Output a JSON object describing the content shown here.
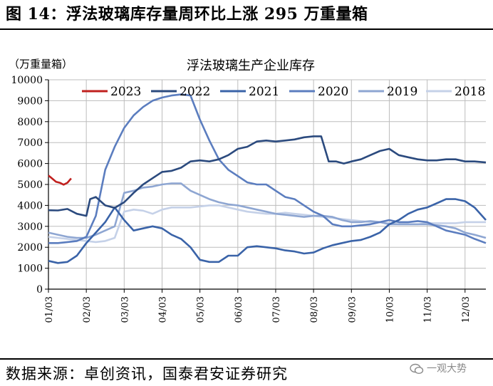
{
  "figure": {
    "title": "图 14：浮法玻璃库存量周环比上涨 295 万重量箱",
    "source": "数据来源：卓创资讯，国泰君安证券研究",
    "watermark": "一观大势"
  },
  "chart_data": {
    "type": "line",
    "title": "浮法玻璃生产企业库存",
    "ylabel": "（万重量箱）",
    "xlabel": "",
    "ylim": [
      0,
      10000
    ],
    "yticks": [
      0,
      1000,
      2000,
      3000,
      4000,
      5000,
      6000,
      7000,
      8000,
      9000,
      10000
    ],
    "xlim": [
      0,
      11.55
    ],
    "xticks": [
      0,
      1,
      2,
      3,
      4,
      5,
      6,
      7,
      8,
      9,
      10,
      11
    ],
    "xtick_labels": [
      "01/03",
      "02/03",
      "03/03",
      "04/03",
      "05/03",
      "06/03",
      "07/03",
      "08/03",
      "09/03",
      "10/03",
      "11/03",
      "12/03"
    ],
    "grid": true,
    "legend_position": "top",
    "series": [
      {
        "name": "2023",
        "color": "#c0201e",
        "x": [
          0,
          0.1,
          0.2,
          0.3,
          0.4,
          0.5,
          0.6
        ],
        "y": [
          5430,
          5280,
          5130,
          5080,
          4990,
          5080,
          5290
        ]
      },
      {
        "name": "2022",
        "color": "#2b4a7e",
        "x": [
          0,
          0.25,
          0.5,
          0.75,
          1.0,
          1.1,
          1.25,
          1.5,
          1.75,
          2.0,
          2.25,
          2.5,
          2.75,
          3.0,
          3.25,
          3.5,
          3.75,
          4.0,
          4.25,
          4.5,
          4.75,
          5.0,
          5.25,
          5.5,
          5.75,
          6.0,
          6.25,
          6.5,
          6.75,
          7.0,
          7.2,
          7.4,
          7.6,
          7.8,
          8.0,
          8.25,
          8.5,
          8.75,
          9.0,
          9.25,
          9.5,
          9.75,
          10.0,
          10.25,
          10.5,
          10.75,
          11.0,
          11.25,
          11.55
        ],
        "y": [
          3770,
          3760,
          3830,
          3600,
          3500,
          4300,
          4400,
          4000,
          3880,
          4150,
          4600,
          5000,
          5300,
          5600,
          5650,
          5800,
          6100,
          6150,
          6100,
          6200,
          6400,
          6700,
          6800,
          7050,
          7100,
          7050,
          7100,
          7150,
          7250,
          7300,
          7300,
          6100,
          6100,
          6000,
          6100,
          6200,
          6400,
          6600,
          6700,
          6400,
          6300,
          6200,
          6150,
          6150,
          6200,
          6200,
          6100,
          6100,
          6050
        ]
      },
      {
        "name": "2021",
        "color": "#3a63a8",
        "x": [
          0,
          0.25,
          0.5,
          0.75,
          1.0,
          1.25,
          1.5,
          1.75,
          2.0,
          2.25,
          2.5,
          2.75,
          3.0,
          3.25,
          3.5,
          3.75,
          4.0,
          4.25,
          4.5,
          4.75,
          5.0,
          5.25,
          5.5,
          5.75,
          6.0,
          6.25,
          6.5,
          6.75,
          7.0,
          7.25,
          7.5,
          7.75,
          8.0,
          8.25,
          8.5,
          8.75,
          9.0,
          9.25,
          9.5,
          9.75,
          10.0,
          10.25,
          10.5,
          10.75,
          11.0,
          11.25,
          11.55
        ],
        "y": [
          1350,
          1250,
          1300,
          1600,
          2200,
          2700,
          3200,
          3900,
          3300,
          2800,
          2900,
          3000,
          2900,
          2600,
          2400,
          2000,
          1400,
          1300,
          1300,
          1600,
          1600,
          2000,
          2050,
          2000,
          1950,
          1850,
          1800,
          1700,
          1750,
          1950,
          2100,
          2200,
          2300,
          2350,
          2500,
          2700,
          3100,
          3300,
          3600,
          3800,
          3900,
          4100,
          4300,
          4300,
          4200,
          3900,
          3300
        ]
      },
      {
        "name": "2020",
        "color": "#5b7dbf",
        "x": [
          0,
          0.25,
          0.5,
          0.75,
          1.0,
          1.25,
          1.5,
          1.75,
          2.0,
          2.25,
          2.5,
          2.75,
          3.0,
          3.25,
          3.5,
          3.75,
          4.0,
          4.25,
          4.5,
          4.75,
          5.0,
          5.25,
          5.5,
          5.75,
          6.0,
          6.25,
          6.5,
          6.75,
          7.0,
          7.25,
          7.5,
          7.75,
          8.0,
          8.25,
          8.5,
          8.75,
          9.0,
          9.25,
          9.5,
          9.75,
          10.0,
          10.25,
          10.5,
          10.75,
          11.0,
          11.25,
          11.55
        ],
        "y": [
          2200,
          2200,
          2250,
          2300,
          2500,
          3500,
          5700,
          6800,
          7700,
          8300,
          8700,
          9000,
          9150,
          9250,
          9300,
          9250,
          8100,
          7100,
          6200,
          5700,
          5400,
          5100,
          5000,
          5000,
          4700,
          4400,
          4300,
          4000,
          3700,
          3500,
          3100,
          3000,
          3000,
          3050,
          3100,
          3200,
          3300,
          3200,
          3200,
          3250,
          3200,
          3000,
          2800,
          2700,
          2600,
          2400,
          2200
        ]
      },
      {
        "name": "2019",
        "color": "#8ea6d2",
        "x": [
          0,
          0.25,
          0.5,
          0.75,
          1.0,
          1.25,
          1.5,
          1.75,
          2.0,
          2.25,
          2.5,
          2.75,
          3.0,
          3.25,
          3.5,
          3.75,
          4.0,
          4.25,
          4.5,
          4.75,
          5.0,
          5.25,
          5.5,
          5.75,
          6.0,
          6.25,
          6.5,
          6.75,
          7.0,
          7.25,
          7.5,
          7.75,
          8.0,
          8.25,
          8.5,
          8.75,
          9.0,
          9.25,
          9.5,
          9.75,
          10.0,
          10.25,
          10.5,
          10.75,
          11.0,
          11.25,
          11.55
        ],
        "y": [
          2700,
          2600,
          2500,
          2450,
          2450,
          2600,
          2800,
          3000,
          4600,
          4700,
          4850,
          4900,
          5000,
          5050,
          5050,
          4700,
          4500,
          4300,
          4150,
          4050,
          4000,
          3900,
          3800,
          3700,
          3600,
          3550,
          3500,
          3450,
          3500,
          3500,
          3450,
          3300,
          3200,
          3200,
          3250,
          3200,
          3100,
          3100,
          3100,
          3100,
          3100,
          3050,
          3000,
          2900,
          2700,
          2600,
          2450
        ]
      },
      {
        "name": "2018",
        "color": "#c5d1e8",
        "x": [
          0,
          0.25,
          0.5,
          0.75,
          1.0,
          1.25,
          1.5,
          1.75,
          2.0,
          2.25,
          2.5,
          2.75,
          3.0,
          3.25,
          3.5,
          3.75,
          4.0,
          4.25,
          4.5,
          4.75,
          5.0,
          5.25,
          5.5,
          5.75,
          6.0,
          6.25,
          6.5,
          6.75,
          7.0,
          7.25,
          7.5,
          7.75,
          8.0,
          8.25,
          8.5,
          8.75,
          9.0,
          9.25,
          9.5,
          9.75,
          10.0,
          10.25,
          10.5,
          10.75,
          11.0,
          11.25,
          11.55
        ],
        "y": [
          2500,
          2450,
          2400,
          2350,
          2300,
          2250,
          2300,
          2450,
          3700,
          3800,
          3750,
          3600,
          3800,
          3900,
          3900,
          3900,
          3950,
          4000,
          4000,
          3900,
          3800,
          3700,
          3650,
          3600,
          3600,
          3650,
          3600,
          3550,
          3500,
          3450,
          3400,
          3350,
          3300,
          3250,
          3200,
          3200,
          3150,
          3100,
          3100,
          3100,
          3150,
          3150,
          3150,
          3150,
          3200,
          3200,
          3200
        ]
      }
    ]
  }
}
